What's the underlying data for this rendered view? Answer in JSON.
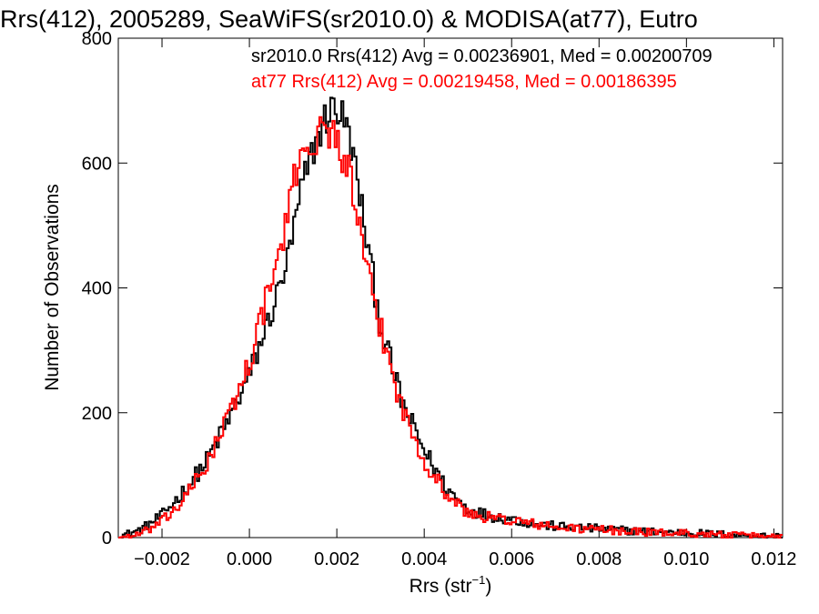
{
  "chart_data": {
    "type": "line",
    "title": "Rrs(412), 2005289, SeaWiFS(sr2010.0) & MODISA(at77), Eutro",
    "xlabel": "Rrs (str",
    "xlabel_sup": "−1",
    "xlabel_close": ")",
    "ylabel": "Number of Observations",
    "xlim": [
      -0.003,
      0.0122
    ],
    "ylim": [
      0,
      800
    ],
    "x_ticks": [
      -0.002,
      0.0,
      0.002,
      0.004,
      0.006,
      0.008,
      0.01,
      0.012
    ],
    "x_tick_labels": [
      "−0.002",
      "0.000",
      "0.002",
      "0.004",
      "0.006",
      "0.008",
      "0.010",
      "0.012"
    ],
    "y_ticks": [
      0,
      200,
      400,
      600,
      800
    ],
    "y_tick_labels": [
      "0",
      "200",
      "400",
      "600",
      "800"
    ],
    "grid": false,
    "legend_position": "top-right",
    "series": [
      {
        "name": "sr2010.0 Rrs(412) Avg = 0.00236901, Med = 0.00200709",
        "color": "#000000",
        "x": [
          -0.003,
          -0.0025,
          -0.002,
          -0.0015,
          -0.001,
          -0.0005,
          0.0,
          0.0003,
          0.0006,
          0.0009,
          0.0012,
          0.0015,
          0.0017,
          0.0019,
          0.0021,
          0.0023,
          0.0025,
          0.0027,
          0.003,
          0.0035,
          0.004,
          0.0045,
          0.005,
          0.0055,
          0.006,
          0.0065,
          0.007,
          0.008,
          0.009,
          0.01,
          0.011,
          0.0122
        ],
        "values": [
          2,
          12,
          35,
          75,
          120,
          185,
          260,
          320,
          380,
          450,
          560,
          630,
          665,
          690,
          680,
          640,
          560,
          470,
          340,
          215,
          140,
          80,
          45,
          35,
          30,
          22,
          18,
          14,
          10,
          8,
          5,
          2
        ]
      },
      {
        "name": "at77 Rrs(412) Avg = 0.00219458, Med = 0.00186395",
        "color": "#ff0000",
        "x": [
          -0.003,
          -0.0025,
          -0.002,
          -0.0015,
          -0.001,
          -0.0005,
          0.0,
          0.0003,
          0.0006,
          0.0009,
          0.0011,
          0.0013,
          0.0015,
          0.0017,
          0.0019,
          0.0021,
          0.0023,
          0.0025,
          0.0027,
          0.003,
          0.0035,
          0.004,
          0.0045,
          0.005,
          0.0055,
          0.006,
          0.0065,
          0.007,
          0.008,
          0.009,
          0.01,
          0.011,
          0.0122
        ],
        "values": [
          0,
          5,
          25,
          60,
          115,
          190,
          280,
          360,
          430,
          520,
          600,
          640,
          625,
          660,
          650,
          620,
          580,
          500,
          420,
          335,
          205,
          125,
          70,
          38,
          32,
          28,
          22,
          16,
          13,
          9,
          7,
          4,
          2
        ]
      }
    ]
  }
}
